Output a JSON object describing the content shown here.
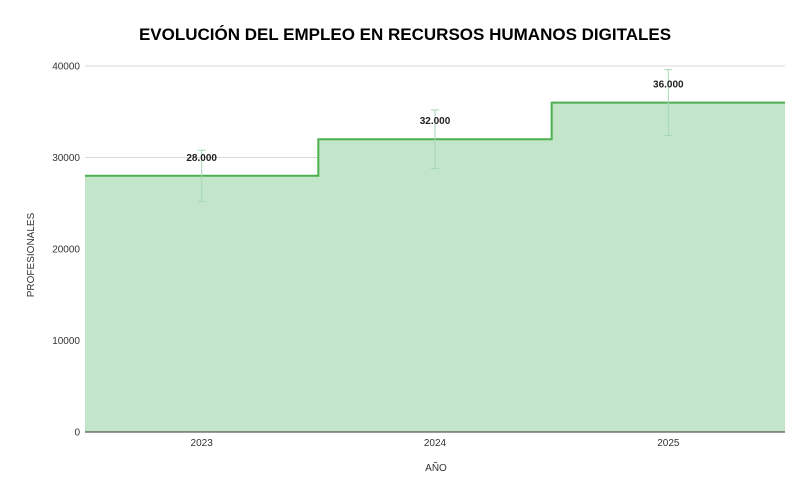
{
  "chart_data": {
    "type": "area",
    "title": "EVOLUCIÓN DEL EMPLEO EN RECURSOS HUMANOS DIGITALES",
    "xlabel": "AÑO",
    "ylabel": "PROFESIONALES",
    "categories": [
      "2023",
      "2024",
      "2025"
    ],
    "series": [
      {
        "values": [
          28000,
          32000,
          36000
        ],
        "data_labels": [
          "28.000",
          "32.000",
          "36.000"
        ],
        "error_low": [
          25200,
          28800,
          32400
        ],
        "error_high": [
          30800,
          35200,
          39600
        ]
      }
    ],
    "ylim": [
      0,
      40000
    ],
    "yticks": [
      0,
      10000,
      20000,
      30000,
      40000
    ],
    "ytick_labels": [
      "0",
      "10000",
      "20000",
      "30000",
      "40000"
    ],
    "step": true,
    "grid": true,
    "legend": "none",
    "colors": {
      "line": "#4caf50",
      "fill": "#c3e6cb",
      "error_bar": "#a5d6b7",
      "grid": "#d9d9d9",
      "axis": "#333333"
    }
  }
}
